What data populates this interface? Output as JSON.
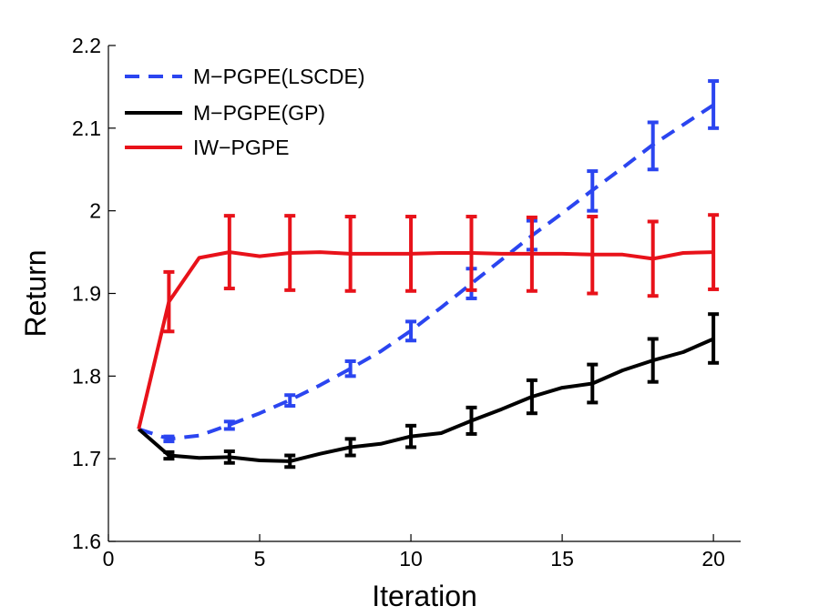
{
  "chart_data": {
    "type": "line",
    "xlabel": "Iteration",
    "ylabel": "Return",
    "xlim": [
      0,
      20.9
    ],
    "ylim": [
      1.6,
      2.2
    ],
    "xticks": [
      0,
      5,
      10,
      15,
      20
    ],
    "yticks": [
      1.6,
      1.7,
      1.8,
      1.9,
      2.0,
      2.1,
      2.2
    ],
    "xtick_labels": [
      "0",
      "5",
      "10",
      "15",
      "20"
    ],
    "ytick_labels": [
      "1.6",
      "1.7",
      "1.8",
      "1.9",
      "2",
      "2.1",
      "2.2"
    ],
    "grid": false,
    "legend_position": "top-left",
    "series": [
      {
        "name": "M−PGPE(LSCDE)",
        "color": "#2b45f0",
        "dash": "dashed",
        "x": [
          1,
          2,
          3,
          4,
          5,
          6,
          7,
          8,
          9,
          10,
          11,
          12,
          13,
          14,
          15,
          16,
          17,
          18,
          19,
          20
        ],
        "y": [
          1.736,
          1.724,
          1.728,
          1.741,
          1.755,
          1.771,
          1.789,
          1.809,
          1.83,
          1.855,
          1.883,
          1.912,
          1.941,
          1.97,
          1.997,
          2.025,
          2.052,
          2.08,
          2.104,
          2.128
        ],
        "errorbars": [
          {
            "x": 2,
            "lo": 1.721,
            "hi": 1.727
          },
          {
            "x": 4,
            "lo": 1.736,
            "hi": 1.745
          },
          {
            "x": 6,
            "lo": 1.764,
            "hi": 1.777
          },
          {
            "x": 8,
            "lo": 1.8,
            "hi": 1.818
          },
          {
            "x": 10,
            "lo": 1.843,
            "hi": 1.866
          },
          {
            "x": 12,
            "lo": 1.894,
            "hi": 1.93
          },
          {
            "x": 14,
            "lo": 1.953,
            "hi": 1.988
          },
          {
            "x": 16,
            "lo": 2.0,
            "hi": 2.048
          },
          {
            "x": 18,
            "lo": 2.05,
            "hi": 2.107
          },
          {
            "x": 20,
            "lo": 2.1,
            "hi": 2.157
          }
        ]
      },
      {
        "name": "M−PGPE(GP)",
        "color": "#000000",
        "dash": "solid",
        "x": [
          1,
          2,
          3,
          4,
          5,
          6,
          7,
          8,
          9,
          10,
          11,
          12,
          13,
          14,
          15,
          16,
          17,
          18,
          19,
          20
        ],
        "y": [
          1.736,
          1.704,
          1.701,
          1.702,
          1.698,
          1.697,
          1.706,
          1.714,
          1.718,
          1.727,
          1.731,
          1.746,
          1.76,
          1.775,
          1.786,
          1.791,
          1.807,
          1.819,
          1.829,
          1.845
        ],
        "errorbars": [
          {
            "x": 2,
            "lo": 1.7,
            "hi": 1.708
          },
          {
            "x": 4,
            "lo": 1.695,
            "hi": 1.709
          },
          {
            "x": 6,
            "lo": 1.69,
            "hi": 1.704
          },
          {
            "x": 8,
            "lo": 1.704,
            "hi": 1.724
          },
          {
            "x": 10,
            "lo": 1.714,
            "hi": 1.74
          },
          {
            "x": 12,
            "lo": 1.73,
            "hi": 1.762
          },
          {
            "x": 14,
            "lo": 1.755,
            "hi": 1.795
          },
          {
            "x": 16,
            "lo": 1.768,
            "hi": 1.814
          },
          {
            "x": 18,
            "lo": 1.793,
            "hi": 1.845
          },
          {
            "x": 20,
            "lo": 1.816,
            "hi": 1.875
          }
        ]
      },
      {
        "name": "IW−PGPE",
        "color": "#e8121a",
        "dash": "solid",
        "x": [
          1,
          2,
          3,
          4,
          5,
          6,
          7,
          8,
          9,
          10,
          11,
          12,
          13,
          14,
          15,
          16,
          17,
          18,
          19,
          20
        ],
        "y": [
          1.736,
          1.89,
          1.943,
          1.95,
          1.945,
          1.949,
          1.95,
          1.948,
          1.948,
          1.948,
          1.949,
          1.949,
          1.948,
          1.948,
          1.948,
          1.947,
          1.947,
          1.942,
          1.949,
          1.95
        ],
        "errorbars": [
          {
            "x": 2,
            "lo": 1.854,
            "hi": 1.926
          },
          {
            "x": 4,
            "lo": 1.906,
            "hi": 1.994
          },
          {
            "x": 6,
            "lo": 1.904,
            "hi": 1.994
          },
          {
            "x": 8,
            "lo": 1.903,
            "hi": 1.993
          },
          {
            "x": 10,
            "lo": 1.903,
            "hi": 1.993
          },
          {
            "x": 12,
            "lo": 1.904,
            "hi": 1.993
          },
          {
            "x": 14,
            "lo": 1.903,
            "hi": 1.992
          },
          {
            "x": 16,
            "lo": 1.9,
            "hi": 1.993
          },
          {
            "x": 18,
            "lo": 1.897,
            "hi": 1.987
          },
          {
            "x": 20,
            "lo": 1.905,
            "hi": 1.995
          }
        ]
      }
    ]
  }
}
